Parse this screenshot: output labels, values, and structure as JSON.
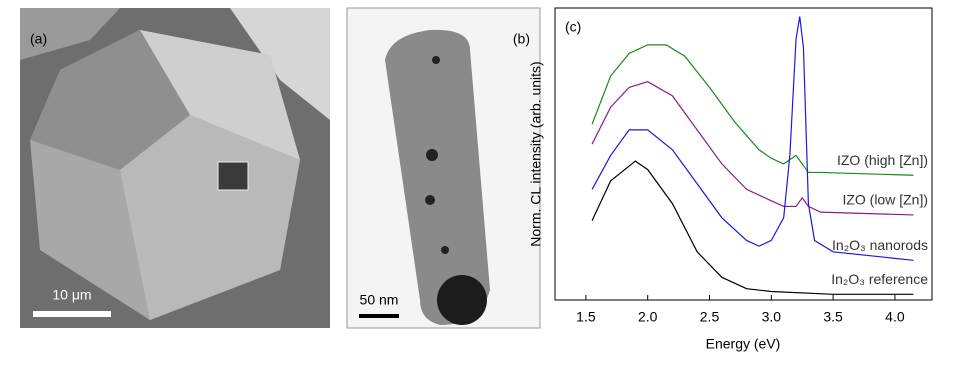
{
  "panels": {
    "a": {
      "label": "(a)",
      "scale_bar": "10 μm"
    },
    "b": {
      "label": "(b)",
      "scale_bar": "50 nm"
    }
  },
  "chart_data": {
    "type": "line",
    "panel_label": "(c)",
    "x_label": "Energy (eV)",
    "y_label": "Norm. CL intensity (arb. units)",
    "xlim": [
      1.25,
      4.3
    ],
    "xticks": [
      1.5,
      {
        "value": 2,
        "label": "2.0"
      },
      2.5,
      {
        "value": 3,
        "label": "3.0"
      },
      3.5,
      {
        "value": 4,
        "label": "4.0"
      }
    ],
    "ylim": [
      0,
      1.03
    ],
    "series": [
      {
        "name": "IZO (high [Zn])",
        "color": "#1a8a1a",
        "x": [
          1.55,
          1.7,
          1.85,
          2.0,
          2.15,
          2.3,
          2.5,
          2.7,
          2.9,
          3.0,
          3.1,
          3.2,
          3.3,
          3.4,
          4.15
        ],
        "values": [
          0.62,
          0.79,
          0.87,
          0.9,
          0.9,
          0.86,
          0.75,
          0.63,
          0.53,
          0.5,
          0.48,
          0.51,
          0.45,
          0.45,
          0.44
        ]
      },
      {
        "name": "IZO (low [Zn])",
        "color": "#8b1a8b",
        "x": [
          1.55,
          1.7,
          1.85,
          2.0,
          2.2,
          2.4,
          2.6,
          2.8,
          3.0,
          3.1,
          3.2,
          3.25,
          3.3,
          3.4,
          4.15
        ],
        "values": [
          0.55,
          0.68,
          0.75,
          0.77,
          0.72,
          0.6,
          0.48,
          0.39,
          0.35,
          0.33,
          0.33,
          0.36,
          0.33,
          0.31,
          0.3
        ]
      },
      {
        "name": "In₂O₃ nanorods",
        "color": "#1a1ae0",
        "x": [
          1.55,
          1.7,
          1.85,
          2.0,
          2.2,
          2.4,
          2.6,
          2.8,
          2.9,
          3.0,
          3.1,
          3.15,
          3.2,
          3.23,
          3.26,
          3.3,
          3.35,
          3.5,
          4.15
        ],
        "values": [
          0.39,
          0.51,
          0.6,
          0.6,
          0.53,
          0.41,
          0.29,
          0.21,
          0.19,
          0.21,
          0.29,
          0.51,
          0.92,
          1.0,
          0.89,
          0.34,
          0.21,
          0.17,
          0.14
        ]
      },
      {
        "name": "In₂O₃ reference",
        "color": "#000000",
        "x": [
          1.55,
          1.7,
          1.9,
          2.0,
          2.2,
          2.4,
          2.6,
          2.8,
          3.0,
          3.5,
          4.15
        ],
        "values": [
          0.28,
          0.42,
          0.49,
          0.46,
          0.34,
          0.17,
          0.08,
          0.04,
          0.03,
          0.02,
          0.02
        ]
      }
    ]
  }
}
